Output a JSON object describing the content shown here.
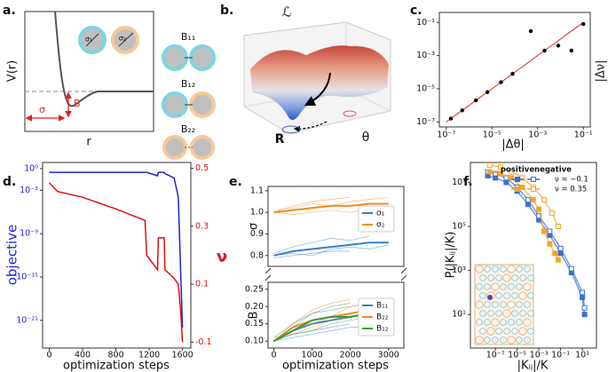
{
  "panel_labels": [
    "a.",
    "b.",
    "c.",
    "d.",
    "e.",
    "f."
  ],
  "panel_a": {
    "y_label": "V(r)",
    "x_label": "r",
    "sigma": "σ",
    "B": "B",
    "particles": [
      "σ₁",
      "σ₂"
    ],
    "bonds": [
      "B₁₁",
      "B₁₂",
      "B₂₂"
    ]
  },
  "panel_b": {
    "loss": "ℒ",
    "R": "R",
    "theta": "θ"
  },
  "chart_data": [
    {
      "type": "scatter",
      "x_label": "|Δθ|",
      "y_label": "|Δν|",
      "log_x": true,
      "log_y": true,
      "xlim": [
        5e-08,
        0.2
      ],
      "ylim": [
        5e-08,
        0.4
      ],
      "xticks": [
        {
          "value": 1e-07,
          "label": "10⁻⁷"
        },
        {
          "value": 1e-05,
          "label": "10⁻⁵"
        },
        {
          "value": 0.001,
          "label": "10⁻³"
        },
        {
          "value": 0.1,
          "label": "10⁻¹"
        }
      ],
      "yticks": [
        {
          "value": 1e-07,
          "label": "10⁻⁷"
        },
        {
          "value": 1e-05,
          "label": "10⁻⁵"
        },
        {
          "value": 0.001,
          "label": "10⁻³"
        },
        {
          "value": 0.1,
          "label": "10⁻¹"
        }
      ],
      "points": {
        "color": "#000000",
        "x": [
          1.6e-07,
          5e-07,
          2e-06,
          6.3e-06,
          2.5e-05,
          8e-05,
          0.0005,
          0.002,
          0.008,
          0.03,
          0.1
        ],
        "values": [
          1.6e-07,
          5e-07,
          2e-06,
          6.3e-06,
          2.5e-05,
          8e-05,
          0.03,
          0.002,
          0.004,
          0.002,
          0.08
        ]
      },
      "fit_line": {
        "color": "#e02020",
        "x": [
          1e-07,
          0.1
        ],
        "values": [
          1e-07,
          0.1
        ]
      }
    },
    {
      "type": "line",
      "x_label": "optimization steps",
      "y_label": "objective",
      "y2_label": "ν",
      "log_y": true,
      "xlim": [
        -80,
        1700
      ],
      "xticks": [
        0,
        400,
        800,
        1200,
        1600
      ],
      "ylim": [
        1.5e-25,
        7
      ],
      "yticks": [
        {
          "value": 1,
          "label": "10⁰"
        },
        {
          "value": 0.001,
          "label": "10⁻³"
        },
        {
          "value": 1e-09,
          "label": "10⁻⁹"
        },
        {
          "value": 1e-15,
          "label": "10⁻¹⁵"
        },
        {
          "value": 1e-21,
          "label": "10⁻²¹"
        }
      ],
      "y2lim": [
        -0.12,
        0.52
      ],
      "y2ticks": [
        0.5,
        0.3,
        0.1,
        -0.1
      ],
      "x": [
        0,
        100,
        400,
        800,
        1150,
        1170,
        1300,
        1310,
        1380,
        1390,
        1500,
        1550,
        1580,
        1600
      ],
      "series": [
        {
          "color": "#1f1fd6",
          "values": [
            0.3,
            0.3,
            0.3,
            0.3,
            0.3,
            0.3,
            0.1,
            0.3,
            0.3,
            0.2,
            0.05,
            0.0001,
            1e-15,
            1e-22
          ]
        },
        {
          "color": "#e01010",
          "axis": "y2",
          "values": [
            0.45,
            0.42,
            0.4,
            0.36,
            0.32,
            0.2,
            0.15,
            0.26,
            0.26,
            0.15,
            0.12,
            0.1,
            0.0,
            -0.1
          ]
        }
      ]
    },
    {
      "type": "line",
      "y_label": "σ",
      "xlim": [
        -150,
        3400
      ],
      "ylim": [
        0.75,
        1.12
      ],
      "yticks": [
        0.8,
        0.9,
        {
          "value": 1.0,
          "label": "1.0"
        },
        1.1
      ],
      "x": [
        0,
        500,
        1000,
        1500,
        2000,
        2500,
        3000
      ],
      "series": [
        {
          "name": "σ₁",
          "color": "#3b7fc4",
          "values": [
            0.8,
            0.82,
            0.83,
            0.84,
            0.85,
            0.86,
            0.86
          ],
          "samples": [
            [
              0.79,
              0.8,
              0.81,
              0.82,
              0.82,
              null,
              null
            ],
            [
              0.81,
              0.84,
              0.86,
              0.88,
              0.87,
              0.89,
              null
            ],
            [
              0.8,
              0.81,
              0.8,
              0.83,
              0.84,
              0.83,
              0.85
            ]
          ]
        },
        {
          "name": "σ₂",
          "color": "#f08c1e",
          "values": [
            1.0,
            1.01,
            1.02,
            1.03,
            1.03,
            1.04,
            1.04
          ],
          "samples": [
            [
              1.0,
              1.03,
              1.05,
              1.06,
              1.07,
              null,
              null
            ],
            [
              1.0,
              0.99,
              1.0,
              1.01,
              1.0,
              1.02,
              null
            ],
            [
              1.01,
              1.02,
              1.04,
              1.03,
              1.05,
              1.06,
              1.07
            ]
          ]
        }
      ]
    },
    {
      "type": "line",
      "x_label": "optimization steps",
      "y_label": "B",
      "xlim": [
        -150,
        3400
      ],
      "ylim": [
        0.08,
        0.27
      ],
      "xticks": [
        0,
        1000,
        2000,
        3000
      ],
      "yticks": [
        {
          "value": 0.1,
          "label": "0.10"
        },
        0.15,
        {
          "value": 0.2,
          "label": "0.20"
        },
        0.25
      ],
      "x": [
        0,
        500,
        1000,
        1500,
        2000,
        2500,
        3000
      ],
      "series": [
        {
          "name": "B₁₁",
          "color": "#3b7fc4",
          "values": [
            0.1,
            0.13,
            0.15,
            0.16,
            0.17,
            0.18,
            0.18
          ],
          "samples": [
            [
              0.1,
              0.12,
              0.13,
              0.14,
              0.15,
              null,
              null
            ],
            [
              0.11,
              0.15,
              0.18,
              0.19,
              0.2,
              0.21,
              null
            ],
            [
              0.1,
              0.11,
              0.12,
              0.13,
              0.14,
              0.14,
              0.15
            ]
          ]
        },
        {
          "name": "B₂₂",
          "color": "#f08c1e",
          "values": [
            0.1,
            0.14,
            0.16,
            0.17,
            0.18,
            0.19,
            0.2
          ],
          "samples": [
            [
              0.1,
              0.15,
              0.19,
              0.21,
              0.22,
              null,
              null
            ],
            [
              0.1,
              0.13,
              0.15,
              0.17,
              0.2,
              0.21,
              0.22
            ],
            [
              0.11,
              0.12,
              0.14,
              0.16,
              0.17,
              0.18,
              null
            ]
          ]
        },
        {
          "name": "B₁₂",
          "color": "#3a9a3a",
          "values": [
            0.1,
            0.13,
            0.16,
            0.17,
            0.17,
            0.18,
            0.19
          ],
          "samples": [
            [
              0.1,
              0.14,
              0.18,
              0.2,
              0.21,
              null,
              null
            ],
            [
              0.1,
              0.12,
              0.13,
              0.15,
              0.16,
              0.17,
              0.17
            ]
          ]
        }
      ]
    },
    {
      "type": "scatter",
      "x_label": "|Kᵢⱼ|/K",
      "y_label": "P(|Kᵢⱼ|/K)",
      "log_x": true,
      "log_y": true,
      "xlim": [
        5e-10,
        200.0
      ],
      "ylim": [
        0.3,
        80000000.0
      ],
      "xticks": [
        {
          "value": 1e-07,
          "label": "10⁻⁷"
        },
        {
          "value": 1e-05,
          "label": "10⁻⁵"
        },
        {
          "value": 0.001,
          "label": "10⁻³"
        },
        {
          "value": 0.1,
          "label": "10⁻¹"
        },
        {
          "value": 10,
          "label": "10¹"
        }
      ],
      "yticks": [
        {
          "value": 10,
          "label": "10¹"
        },
        {
          "value": 1000.0,
          "label": "10³"
        },
        {
          "value": 100000.0,
          "label": "10⁵"
        },
        {
          "value": 10000000.0,
          "label": "10⁷"
        }
      ],
      "legend_columns": [
        "positive",
        "negative"
      ],
      "series": [
        {
          "name": "ν = −0.1",
          "color": "#3a6fd8",
          "groups": [
            {
              "x": [
                2e-08,
                1e-07,
                1e-06,
                1e-05,
                0.0001,
                0.001,
                0.01,
                0.1,
                1,
                10,
                16
              ],
              "values": [
                20000000.0,
                16000000.0,
                10000000.0,
                4000000.0,
                1000000.0,
                200000.0,
                40000.0,
                6000.0,
                800.0,
                60,
                10
              ]
            },
            {
              "x": [
                2e-08,
                1e-07,
                1e-06,
                1e-05,
                0.0001,
                0.001,
                0.01,
                0.1,
                1,
                10,
                16
              ],
              "values": [
                30000000.0,
                25000000.0,
                16000000.0,
                6000000.0,
                1600000.0,
                300000.0,
                60000.0,
                10000.0,
                1200.0,
                100,
                20
              ]
            }
          ]
        },
        {
          "name": "ν = 0.35",
          "color": "#f5a623",
          "groups": [
            {
              "x": [
                3e-08,
                3e-07,
                3e-06,
                3e-05,
                0.0003,
                0.001,
                0.003,
                0.01,
                0.03,
                0.06
              ],
              "values": [
                30000000.0,
                25000000.0,
                16000000.0,
                6000000.0,
                1600000.0,
                600000.0,
                60000.0,
                16000.0,
                6000.0,
                3000.0
              ]
            },
            {
              "x": [
                3e-08,
                3e-07,
                3e-06,
                3e-05,
                0.0003,
                0.003,
                0.016,
                0.06
              ],
              "values": [
                60000000.0,
                50000000.0,
                30000000.0,
                16000000.0,
                6000000.0,
                1600000.0,
                400000.0,
                100000.0
              ]
            }
          ]
        }
      ]
    }
  ]
}
